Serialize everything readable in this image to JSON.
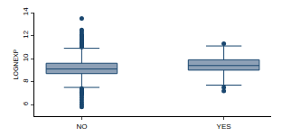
{
  "chart_data": {
    "type": "box",
    "y_label": "LOGNEXP",
    "categories": [
      "NO",
      "YES"
    ],
    "color": "#8da0b6",
    "grid": false,
    "ylim": [
      5,
      14
    ],
    "yticks": [
      6,
      8,
      10,
      12,
      14
    ],
    "boxes": [
      {
        "lower_whisker": 7.5,
        "q1": 8.7,
        "median": 9.1,
        "q3": 9.6,
        "upper_whisker": 10.9,
        "outliers": [
          11.0,
          11.1,
          11.2,
          11.3,
          11.4,
          11.5,
          11.6,
          11.7,
          11.8,
          11.9,
          12.0,
          12.1,
          12.3,
          12.5,
          13.5,
          7.4,
          7.3,
          7.2,
          7.1,
          7.0,
          6.9,
          6.8,
          6.6,
          6.4,
          6.2,
          6.0,
          5.8
        ]
      },
      {
        "lower_whisker": 7.7,
        "q1": 9.0,
        "median": 9.4,
        "q3": 9.9,
        "upper_whisker": 11.1,
        "outliers": [
          11.3,
          7.5,
          7.2
        ]
      }
    ]
  }
}
